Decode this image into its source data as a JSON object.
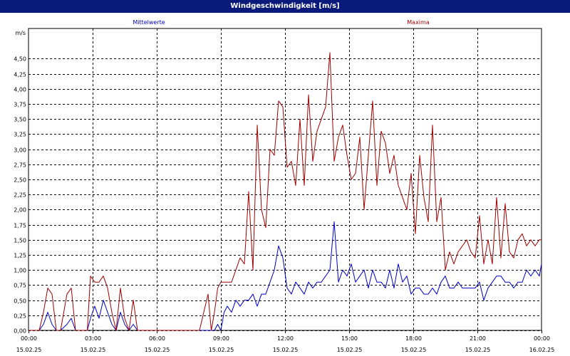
{
  "window": {
    "title": "Windgeschwindigkeit [m/s]"
  },
  "chart_data": {
    "type": "line",
    "title": "Windgeschwindigkeit [m/s]",
    "ylabel": "m/s",
    "xlabel": "",
    "ylim": [
      0,
      5
    ],
    "xlim": [
      0,
      24
    ],
    "grid": true,
    "y_ticks": [
      "0,00",
      "0,25",
      "0,50",
      "0,75",
      "1,00",
      "1,25",
      "1,50",
      "1,75",
      "2,00",
      "2,25",
      "2,50",
      "2,75",
      "3,00",
      "3,25",
      "3,50",
      "3,75",
      "4,00",
      "4,25",
      "4,50"
    ],
    "x_ticks": [
      {
        "time": "00:00",
        "date": "15.02.25"
      },
      {
        "time": "03:00",
        "date": "15.02.25"
      },
      {
        "time": "06:00",
        "date": "15.02.25"
      },
      {
        "time": "09:00",
        "date": "15.02.25"
      },
      {
        "time": "12:00",
        "date": "15.02.25"
      },
      {
        "time": "15:00",
        "date": "15.02.25"
      },
      {
        "time": "18:00",
        "date": "15.02.25"
      },
      {
        "time": "21:00",
        "date": "15.02.25"
      },
      {
        "time": "00:00",
        "date": "16.02.25"
      }
    ],
    "series": [
      {
        "name": "Mittelwerte",
        "color": "#0000c8",
        "x": [
          0,
          0.5,
          0.7,
          0.9,
          1.1,
          1.3,
          1.5,
          1.8,
          2.0,
          2.2,
          2.4,
          2.6,
          2.75,
          2.9,
          3.1,
          3.3,
          3.5,
          3.7,
          3.9,
          4.1,
          4.3,
          4.5,
          4.7,
          4.9,
          5.1,
          5.3,
          5.5,
          6.0,
          6.5,
          7.0,
          7.5,
          8.0,
          8.4,
          8.55,
          8.7,
          8.85,
          9.0,
          9.15,
          9.3,
          9.5,
          9.7,
          9.9,
          10.1,
          10.3,
          10.5,
          10.7,
          10.9,
          11.1,
          11.3,
          11.5,
          11.7,
          11.9,
          12.1,
          12.3,
          12.5,
          12.7,
          12.9,
          13.1,
          13.3,
          13.5,
          13.7,
          13.9,
          14.1,
          14.3,
          14.5,
          14.7,
          14.9,
          15.1,
          15.3,
          15.5,
          15.7,
          15.9,
          16.1,
          16.3,
          16.5,
          16.7,
          16.9,
          17.1,
          17.3,
          17.5,
          17.7,
          17.9,
          18.1,
          18.3,
          18.5,
          18.7,
          18.9,
          19.1,
          19.3,
          19.5,
          19.7,
          19.9,
          20.1,
          20.3,
          20.5,
          20.7,
          20.9,
          21.1,
          21.3,
          21.5,
          21.7,
          21.9,
          22.1,
          22.3,
          22.5,
          22.7,
          22.9,
          23.1,
          23.3,
          23.5,
          23.7,
          23.9,
          24.0
        ],
        "values": [
          0.0,
          0.0,
          0.1,
          0.3,
          0.1,
          0.0,
          0.0,
          0.1,
          0.2,
          0.0,
          0.0,
          0.0,
          0.0,
          0.2,
          0.4,
          0.2,
          0.5,
          0.3,
          0.1,
          0.0,
          0.3,
          0.1,
          0.0,
          0.1,
          0.0,
          0.0,
          0.0,
          0.0,
          0.0,
          0.0,
          0.0,
          0.0,
          0.0,
          0.0,
          0.0,
          0.1,
          0.0,
          0.3,
          0.4,
          0.3,
          0.5,
          0.4,
          0.5,
          0.5,
          0.6,
          0.4,
          0.6,
          0.6,
          0.8,
          1.0,
          1.4,
          1.2,
          0.7,
          0.6,
          0.8,
          0.7,
          0.6,
          0.8,
          0.7,
          0.8,
          0.8,
          0.9,
          1.0,
          1.8,
          0.8,
          1.0,
          0.9,
          1.1,
          0.8,
          0.9,
          1.0,
          0.7,
          1.0,
          0.8,
          0.8,
          0.7,
          1.0,
          0.7,
          1.1,
          0.8,
          0.9,
          0.6,
          0.7,
          0.7,
          0.6,
          0.6,
          0.7,
          0.6,
          0.8,
          0.9,
          0.7,
          0.7,
          0.8,
          0.7,
          0.7,
          0.7,
          0.7,
          0.8,
          0.5,
          0.7,
          0.8,
          0.9,
          0.9,
          0.8,
          0.8,
          0.7,
          0.8,
          0.8,
          1.0,
          0.9,
          1.0,
          0.9,
          1.1
        ],
        "value_labels": [
          "0.0"
        ]
      },
      {
        "name": "Maxima",
        "color": "#a00000",
        "x": [
          0,
          0.5,
          0.7,
          0.9,
          1.1,
          1.3,
          1.5,
          1.8,
          2.0,
          2.2,
          2.4,
          2.6,
          2.75,
          2.9,
          3.1,
          3.3,
          3.5,
          3.7,
          3.9,
          4.1,
          4.3,
          4.5,
          4.7,
          4.9,
          5.1,
          5.3,
          5.5,
          6.0,
          6.5,
          7.0,
          7.5,
          8.0,
          8.4,
          8.55,
          8.7,
          8.85,
          9.0,
          9.15,
          9.3,
          9.5,
          9.7,
          9.9,
          10.1,
          10.3,
          10.5,
          10.7,
          10.9,
          11.1,
          11.3,
          11.5,
          11.7,
          11.9,
          12.1,
          12.3,
          12.5,
          12.7,
          12.9,
          13.1,
          13.3,
          13.5,
          13.7,
          13.9,
          14.1,
          14.3,
          14.5,
          14.7,
          14.9,
          15.1,
          15.3,
          15.5,
          15.7,
          15.9,
          16.1,
          16.3,
          16.5,
          16.7,
          16.9,
          17.1,
          17.3,
          17.5,
          17.7,
          17.9,
          18.1,
          18.3,
          18.5,
          18.7,
          18.9,
          19.1,
          19.3,
          19.5,
          19.7,
          19.9,
          20.1,
          20.3,
          20.5,
          20.7,
          20.9,
          21.1,
          21.3,
          21.5,
          21.7,
          21.9,
          22.1,
          22.3,
          22.5,
          22.7,
          22.9,
          23.1,
          23.3,
          23.5,
          23.7,
          23.9,
          24.0
        ],
        "values": [
          0.0,
          0.0,
          0.3,
          0.7,
          0.6,
          0.0,
          0.0,
          0.6,
          0.7,
          0.0,
          0.0,
          0.0,
          0.0,
          0.9,
          0.8,
          0.8,
          0.9,
          0.7,
          0.3,
          0.0,
          0.7,
          0.2,
          0.0,
          0.5,
          0.0,
          0.0,
          0.0,
          0.0,
          0.0,
          0.0,
          0.0,
          0.0,
          0.6,
          0.0,
          0.3,
          0.7,
          0.8,
          0.8,
          0.8,
          0.8,
          1.0,
          1.2,
          1.1,
          2.3,
          1.0,
          3.4,
          2.0,
          1.7,
          3.0,
          2.9,
          3.8,
          3.7,
          2.7,
          2.8,
          2.4,
          3.5,
          2.4,
          3.9,
          2.8,
          3.3,
          3.5,
          3.7,
          4.6,
          2.8,
          3.2,
          3.4,
          2.9,
          2.5,
          2.6,
          3.2,
          2.0,
          2.9,
          3.8,
          2.4,
          3.3,
          3.1,
          2.6,
          2.9,
          2.4,
          2.2,
          2.0,
          2.6,
          1.6,
          2.9,
          2.2,
          1.8,
          3.4,
          1.8,
          2.2,
          1.0,
          1.3,
          1.1,
          1.3,
          1.4,
          1.5,
          1.3,
          1.2,
          1.9,
          1.1,
          1.5,
          1.1,
          2.2,
          1.2,
          2.1,
          1.3,
          1.2,
          1.5,
          1.6,
          1.4,
          1.5,
          1.4,
          1.5,
          1.5
        ],
        "value_labels": [
          "0.0"
        ]
      }
    ]
  }
}
